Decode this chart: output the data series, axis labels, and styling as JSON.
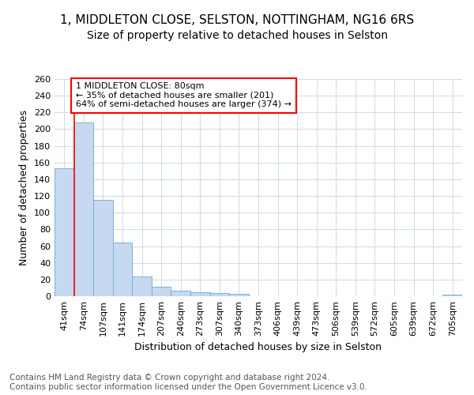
{
  "title1": "1, MIDDLETON CLOSE, SELSTON, NOTTINGHAM, NG16 6RS",
  "title2": "Size of property relative to detached houses in Selston",
  "xlabel": "Distribution of detached houses by size in Selston",
  "ylabel": "Number of detached properties",
  "footer": "Contains HM Land Registry data © Crown copyright and database right 2024.\nContains public sector information licensed under the Open Government Licence v3.0.",
  "bar_labels": [
    "41sqm",
    "74sqm",
    "107sqm",
    "141sqm",
    "174sqm",
    "207sqm",
    "240sqm",
    "273sqm",
    "307sqm",
    "340sqm",
    "373sqm",
    "406sqm",
    "439sqm",
    "473sqm",
    "506sqm",
    "539sqm",
    "572sqm",
    "605sqm",
    "639sqm",
    "672sqm",
    "705sqm"
  ],
  "bar_values": [
    153,
    208,
    115,
    64,
    24,
    11,
    7,
    5,
    4,
    3,
    0,
    0,
    0,
    0,
    0,
    0,
    0,
    0,
    0,
    0,
    2
  ],
  "bar_color": "#c5d9f0",
  "bar_edge_color": "#7ab0d8",
  "vline_x": 0.5,
  "annotation_text": "1 MIDDLETON CLOSE: 80sqm\n← 35% of detached houses are smaller (201)\n64% of semi-detached houses are larger (374) →",
  "annotation_box_color": "white",
  "annotation_box_edge_color": "red",
  "vline_color": "red",
  "ylim": [
    0,
    260
  ],
  "yticks": [
    0,
    20,
    40,
    60,
    80,
    100,
    120,
    140,
    160,
    180,
    200,
    220,
    240,
    260
  ],
  "bg_color": "#ffffff",
  "plot_bg_color": "#ffffff",
  "grid_color": "#d0dce8",
  "title1_fontsize": 11,
  "title2_fontsize": 10,
  "xlabel_fontsize": 9,
  "ylabel_fontsize": 9,
  "footer_fontsize": 7.5,
  "tick_fontsize": 8,
  "annot_fontsize": 8
}
